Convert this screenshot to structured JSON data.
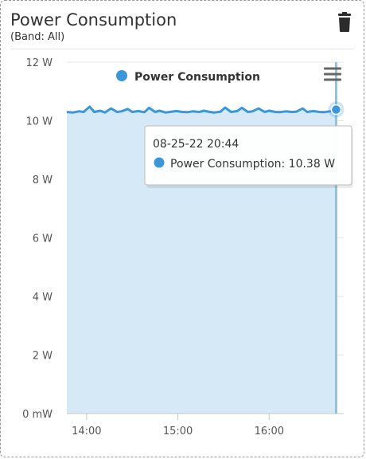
{
  "widget": {
    "title": "Power Consumption",
    "subtitle": "(Band: All)",
    "delete_icon": "trash-icon",
    "menu_icon": "hamburger-menu-icon"
  },
  "colors": {
    "series": "#3b97d8",
    "area": "#d5e9f6",
    "grid": "#e6e6e6",
    "crosshair": "#8fc3e2"
  },
  "chart_data": {
    "type": "area",
    "title": "",
    "xlabel": "",
    "ylabel": "",
    "ylim": [
      0,
      12
    ],
    "yticks": [
      0,
      2,
      4,
      6,
      8,
      10,
      12
    ],
    "ytick_labels": [
      "0 mW",
      "2 W",
      "4 W",
      "6 W",
      "8 W",
      "10 W",
      "12 W"
    ],
    "xlim": [
      "13:47",
      "16:49"
    ],
    "xticks": [
      "14:00",
      "15:00",
      "16:00"
    ],
    "legend": {
      "position": "top",
      "entries": [
        "Power Consumption"
      ]
    },
    "series": [
      {
        "name": "Power Consumption",
        "x": [
          "13:47",
          "13:51",
          "13:55",
          "13:58",
          "14:02",
          "14:05",
          "14:09",
          "14:12",
          "14:16",
          "14:20",
          "14:23",
          "14:27",
          "14:30",
          "14:34",
          "14:38",
          "14:41",
          "14:45",
          "14:48",
          "14:52",
          "14:56",
          "14:59",
          "15:03",
          "15:06",
          "15:10",
          "15:14",
          "15:17",
          "15:21",
          "15:24",
          "15:28",
          "15:31",
          "15:35",
          "15:39",
          "15:42",
          "15:46",
          "15:49",
          "15:53",
          "15:57",
          "16:00",
          "16:04",
          "16:07",
          "16:11",
          "16:15",
          "16:18",
          "16:22",
          "16:25",
          "16:29",
          "16:33",
          "16:36",
          "16:40",
          "16:44"
        ],
        "values": [
          10.3,
          10.28,
          10.32,
          10.3,
          10.48,
          10.3,
          10.34,
          10.28,
          10.42,
          10.3,
          10.32,
          10.4,
          10.3,
          10.33,
          10.29,
          10.44,
          10.3,
          10.34,
          10.28,
          10.31,
          10.33,
          10.3,
          10.29,
          10.32,
          10.3,
          10.34,
          10.3,
          10.28,
          10.31,
          10.45,
          10.3,
          10.33,
          10.44,
          10.3,
          10.32,
          10.42,
          10.3,
          10.34,
          10.3,
          10.29,
          10.32,
          10.3,
          10.31,
          10.42,
          10.3,
          10.33,
          10.3,
          10.29,
          10.32,
          10.38
        ]
      }
    ],
    "tooltip": {
      "time": "08-25-22 20:44",
      "label": "Power Consumption: 10.38 W",
      "x": "16:44",
      "value": 10.38
    }
  }
}
